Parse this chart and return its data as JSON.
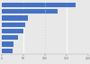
{
  "values": [
    170,
    130,
    60,
    55,
    50,
    38,
    28,
    24
  ],
  "bar_color": "#4472c4",
  "background_color": "#e8e8e8",
  "xlim": [
    0,
    200
  ],
  "xticks": [
    0,
    50,
    100,
    150,
    200
  ],
  "bar_height": 0.72,
  "figsize": [
    1.0,
    0.71
  ],
  "dpi": 100
}
